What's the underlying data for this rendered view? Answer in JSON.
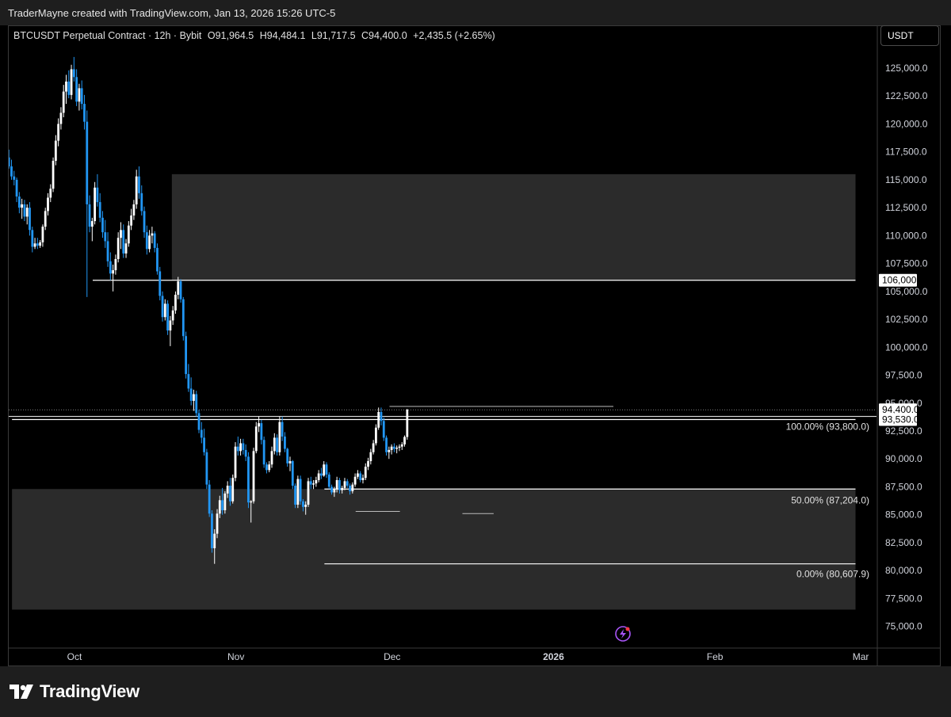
{
  "header": {
    "credit": "TraderMayne created with TradingView.com, Jan 13, 2026 15:26 UTC-5"
  },
  "legend": {
    "symbol": "BTCUSDT Perpetual Contract · 12h · Bybit",
    "open": "O91,964.5",
    "high": "H94,484.1",
    "low": "L91,717.5",
    "close": "C94,400.0",
    "change": "+2,435.5 (+2.65%)"
  },
  "unit_button": "USDT",
  "footer": {
    "brand": "TradingView",
    "logo_icon": "tradingview-logo-icon"
  },
  "colors": {
    "background": "#000000",
    "up": "#ffffff",
    "down": "#2196f3",
    "zone": "#2b2b2b",
    "axis_text": "#d1d4dc"
  },
  "chart_data": {
    "type": "candlestick",
    "ylim": [
      73500,
      128000
    ],
    "y_ticks": [
      {
        "value": 125000,
        "label": "125,000.0"
      },
      {
        "value": 122500,
        "label": "122,500.0"
      },
      {
        "value": 120000,
        "label": "120,000.0"
      },
      {
        "value": 117500,
        "label": "117,500.0"
      },
      {
        "value": 115000,
        "label": "115,000.0"
      },
      {
        "value": 112500,
        "label": "112,500.0"
      },
      {
        "value": 110000,
        "label": "110,000.0"
      },
      {
        "value": 107500,
        "label": "107,500.0"
      },
      {
        "value": 105000,
        "label": "105,000.0"
      },
      {
        "value": 102500,
        "label": "102,500.0"
      },
      {
        "value": 100000,
        "label": "100,000.0"
      },
      {
        "value": 97500,
        "label": "97,500.0"
      },
      {
        "value": 95000,
        "label": "95,000.0"
      },
      {
        "value": 92500,
        "label": "92,500.0"
      },
      {
        "value": 90000,
        "label": "90,000.0"
      },
      {
        "value": 87500,
        "label": "87,500.0"
      },
      {
        "value": 85000,
        "label": "85,000.0"
      },
      {
        "value": 82500,
        "label": "82,500.0"
      },
      {
        "value": 80000,
        "label": "80,000.0"
      },
      {
        "value": 77500,
        "label": "77,500.0"
      },
      {
        "value": 75000,
        "label": "75,000.0"
      }
    ],
    "x_ticks": [
      {
        "day": 0,
        "label": "Oct",
        "bold": false
      },
      {
        "day": 31,
        "label": "Nov",
        "bold": false
      },
      {
        "day": 61,
        "label": "Dec",
        "bold": false
      },
      {
        "day": 92,
        "label": "2026",
        "bold": true
      },
      {
        "day": 123,
        "label": "Feb",
        "bold": false
      },
      {
        "day": 151,
        "label": "Mar",
        "bold": false
      }
    ],
    "price_labels": [
      {
        "value": 106000,
        "label": "106,000.0"
      },
      {
        "value": 94400,
        "label": "94,400.0"
      },
      {
        "value": 93530,
        "label": "93,530.0"
      }
    ],
    "fib_levels": [
      {
        "value": 93800,
        "label": "100.00% (93,800.0)"
      },
      {
        "value": 87204,
        "label": "50.00% (87,204.0)"
      },
      {
        "value": 80607.9,
        "label": "0.00% (80,607.9)"
      }
    ],
    "zones": [
      {
        "x_start": 18.7,
        "x_end": 150,
        "y_low": 106000,
        "y_high": 115500
      },
      {
        "x_start": -12,
        "x_end": 150,
        "y_low": 76500,
        "y_high": 87300
      }
    ],
    "levels": [
      {
        "x_start": 3.5,
        "x_end": 150,
        "value": 106000
      },
      {
        "x_start": -12,
        "x_end": 150,
        "value": 93530
      },
      {
        "x_start": 48,
        "x_end": 150,
        "value": 87300
      },
      {
        "x_start": 48,
        "x_end": 150,
        "value": 80600
      }
    ],
    "current_price": 94400,
    "candles": [
      {
        "o": 117000,
        "h": 117700,
        "l": 116000,
        "c": 116200
      },
      {
        "o": 116200,
        "h": 116800,
        "l": 115000,
        "c": 115300
      },
      {
        "o": 115300,
        "h": 115800,
        "l": 114500,
        "c": 115000
      },
      {
        "o": 115000,
        "h": 115200,
        "l": 113000,
        "c": 113500
      },
      {
        "o": 113500,
        "h": 113900,
        "l": 112000,
        "c": 112500
      },
      {
        "o": 112500,
        "h": 113300,
        "l": 111500,
        "c": 112800
      },
      {
        "o": 112800,
        "h": 113200,
        "l": 111300,
        "c": 111700
      },
      {
        "o": 111700,
        "h": 112800,
        "l": 111000,
        "c": 112500
      },
      {
        "o": 112500,
        "h": 113000,
        "l": 110000,
        "c": 110500
      },
      {
        "o": 110500,
        "h": 110800,
        "l": 108500,
        "c": 109000
      },
      {
        "o": 109000,
        "h": 109800,
        "l": 108800,
        "c": 109300
      },
      {
        "o": 109300,
        "h": 109800,
        "l": 108800,
        "c": 109100
      },
      {
        "o": 109100,
        "h": 109600,
        "l": 108900,
        "c": 109400
      },
      {
        "o": 109400,
        "h": 111000,
        "l": 109000,
        "c": 110800
      },
      {
        "o": 110800,
        "h": 112500,
        "l": 110500,
        "c": 112200
      },
      {
        "o": 112200,
        "h": 113800,
        "l": 111800,
        "c": 113400
      },
      {
        "o": 113400,
        "h": 114600,
        "l": 113000,
        "c": 114200
      },
      {
        "o": 114200,
        "h": 117000,
        "l": 113900,
        "c": 116700
      },
      {
        "o": 116700,
        "h": 119000,
        "l": 116300,
        "c": 118500
      },
      {
        "o": 118500,
        "h": 120500,
        "l": 118000,
        "c": 120000
      },
      {
        "o": 120000,
        "h": 121500,
        "l": 119500,
        "c": 121000
      },
      {
        "o": 121000,
        "h": 123500,
        "l": 120600,
        "c": 122900
      },
      {
        "o": 122900,
        "h": 124400,
        "l": 121800,
        "c": 123800
      },
      {
        "o": 123800,
        "h": 124800,
        "l": 122300,
        "c": 122600
      },
      {
        "o": 122600,
        "h": 125300,
        "l": 122200,
        "c": 124900
      },
      {
        "o": 124900,
        "h": 126000,
        "l": 123800,
        "c": 124200
      },
      {
        "o": 124200,
        "h": 124900,
        "l": 121600,
        "c": 122000
      },
      {
        "o": 122000,
        "h": 123600,
        "l": 121200,
        "c": 123200
      },
      {
        "o": 123200,
        "h": 123900,
        "l": 121300,
        "c": 121800
      },
      {
        "o": 121800,
        "h": 122600,
        "l": 119500,
        "c": 120200
      },
      {
        "o": 120200,
        "h": 121200,
        "l": 104500,
        "c": 112800
      },
      {
        "o": 112800,
        "h": 113600,
        "l": 110300,
        "c": 110800
      },
      {
        "o": 110800,
        "h": 111600,
        "l": 109500,
        "c": 111300
      },
      {
        "o": 111300,
        "h": 114800,
        "l": 111000,
        "c": 114300
      },
      {
        "o": 114300,
        "h": 115500,
        "l": 112600,
        "c": 113000
      },
      {
        "o": 113000,
        "h": 113800,
        "l": 111200,
        "c": 111600
      },
      {
        "o": 111600,
        "h": 112200,
        "l": 109800,
        "c": 110300
      },
      {
        "o": 110300,
        "h": 111400,
        "l": 108900,
        "c": 109500
      },
      {
        "o": 109500,
        "h": 110300,
        "l": 107200,
        "c": 107700
      },
      {
        "o": 107700,
        "h": 108500,
        "l": 106000,
        "c": 106600
      },
      {
        "o": 106600,
        "h": 107400,
        "l": 105000,
        "c": 106900
      },
      {
        "o": 106900,
        "h": 108300,
        "l": 106500,
        "c": 107900
      },
      {
        "o": 107900,
        "h": 110300,
        "l": 107600,
        "c": 109800
      },
      {
        "o": 109800,
        "h": 111200,
        "l": 108800,
        "c": 110500
      },
      {
        "o": 110500,
        "h": 111000,
        "l": 108000,
        "c": 108400
      },
      {
        "o": 108400,
        "h": 109700,
        "l": 108000,
        "c": 109300
      },
      {
        "o": 109300,
        "h": 111300,
        "l": 109000,
        "c": 110900
      },
      {
        "o": 110900,
        "h": 112400,
        "l": 110500,
        "c": 111800
      },
      {
        "o": 111800,
        "h": 113200,
        "l": 111400,
        "c": 112800
      },
      {
        "o": 112800,
        "h": 115900,
        "l": 112400,
        "c": 115300
      },
      {
        "o": 115300,
        "h": 116200,
        "l": 113300,
        "c": 113800
      },
      {
        "o": 113800,
        "h": 114500,
        "l": 111800,
        "c": 112200
      },
      {
        "o": 112200,
        "h": 112600,
        "l": 109800,
        "c": 110300
      },
      {
        "o": 110300,
        "h": 110900,
        "l": 108300,
        "c": 108800
      },
      {
        "o": 108800,
        "h": 110500,
        "l": 108500,
        "c": 110000
      },
      {
        "o": 110000,
        "h": 110800,
        "l": 109300,
        "c": 110200
      },
      {
        "o": 110200,
        "h": 110400,
        "l": 108500,
        "c": 108900
      },
      {
        "o": 108900,
        "h": 109300,
        "l": 106500,
        "c": 106800
      },
      {
        "o": 106800,
        "h": 107200,
        "l": 104200,
        "c": 104600
      },
      {
        "o": 104600,
        "h": 105000,
        "l": 102300,
        "c": 102700
      },
      {
        "o": 102700,
        "h": 104300,
        "l": 102400,
        "c": 103900
      },
      {
        "o": 103900,
        "h": 104200,
        "l": 101100,
        "c": 101500
      },
      {
        "o": 101500,
        "h": 102800,
        "l": 100100,
        "c": 102400
      },
      {
        "o": 102400,
        "h": 103700,
        "l": 102000,
        "c": 103300
      },
      {
        "o": 103300,
        "h": 105000,
        "l": 103000,
        "c": 104700
      },
      {
        "o": 104700,
        "h": 106300,
        "l": 104300,
        "c": 105900
      },
      {
        "o": 105900,
        "h": 106100,
        "l": 104000,
        "c": 104300
      },
      {
        "o": 104300,
        "h": 104500,
        "l": 100600,
        "c": 101000
      },
      {
        "o": 101000,
        "h": 101400,
        "l": 97200,
        "c": 97600
      },
      {
        "o": 97600,
        "h": 98500,
        "l": 96000,
        "c": 96300
      },
      {
        "o": 96300,
        "h": 97300,
        "l": 94800,
        "c": 95200
      },
      {
        "o": 95200,
        "h": 96200,
        "l": 94300,
        "c": 95800
      },
      {
        "o": 95800,
        "h": 96100,
        "l": 93800,
        "c": 94100
      },
      {
        "o": 94100,
        "h": 94400,
        "l": 92300,
        "c": 92600
      },
      {
        "o": 92600,
        "h": 93300,
        "l": 91400,
        "c": 91900
      },
      {
        "o": 91900,
        "h": 92700,
        "l": 90300,
        "c": 90600
      },
      {
        "o": 90600,
        "h": 90900,
        "l": 87300,
        "c": 87700
      },
      {
        "o": 87700,
        "h": 88100,
        "l": 84800,
        "c": 85100
      },
      {
        "o": 85100,
        "h": 85400,
        "l": 81600,
        "c": 82000
      },
      {
        "o": 82000,
        "h": 83700,
        "l": 80600,
        "c": 83300
      },
      {
        "o": 83300,
        "h": 85500,
        "l": 82900,
        "c": 85100
      },
      {
        "o": 85100,
        "h": 86700,
        "l": 84700,
        "c": 86300
      },
      {
        "o": 86300,
        "h": 87400,
        "l": 85000,
        "c": 85400
      },
      {
        "o": 85400,
        "h": 87100,
        "l": 85100,
        "c": 86900
      },
      {
        "o": 86900,
        "h": 88000,
        "l": 86500,
        "c": 87600
      },
      {
        "o": 87600,
        "h": 88300,
        "l": 85800,
        "c": 86200
      },
      {
        "o": 86200,
        "h": 88600,
        "l": 86000,
        "c": 88300
      },
      {
        "o": 88300,
        "h": 91500,
        "l": 88000,
        "c": 91100
      },
      {
        "o": 91100,
        "h": 92000,
        "l": 90300,
        "c": 90700
      },
      {
        "o": 90700,
        "h": 91800,
        "l": 90300,
        "c": 91400
      },
      {
        "o": 91400,
        "h": 91800,
        "l": 90400,
        "c": 90800
      },
      {
        "o": 90800,
        "h": 91300,
        "l": 89800,
        "c": 90200
      },
      {
        "o": 90200,
        "h": 90600,
        "l": 85600,
        "c": 86100
      },
      {
        "o": 86100,
        "h": 86300,
        "l": 84300,
        "c": 86200
      },
      {
        "o": 86200,
        "h": 91000,
        "l": 86000,
        "c": 90700
      },
      {
        "o": 90700,
        "h": 93300,
        "l": 90500,
        "c": 92900
      },
      {
        "o": 92900,
        "h": 93800,
        "l": 92400,
        "c": 93200
      },
      {
        "o": 93200,
        "h": 93500,
        "l": 91300,
        "c": 91700
      },
      {
        "o": 91700,
        "h": 92000,
        "l": 89200,
        "c": 89500
      },
      {
        "o": 89500,
        "h": 89700,
        "l": 88700,
        "c": 89000
      },
      {
        "o": 89000,
        "h": 89800,
        "l": 88800,
        "c": 89500
      },
      {
        "o": 89500,
        "h": 91100,
        "l": 89200,
        "c": 90700
      },
      {
        "o": 90700,
        "h": 92300,
        "l": 90400,
        "c": 91900
      },
      {
        "o": 91900,
        "h": 92200,
        "l": 90300,
        "c": 90600
      },
      {
        "o": 90600,
        "h": 93800,
        "l": 90300,
        "c": 93300
      },
      {
        "o": 93300,
        "h": 93800,
        "l": 91600,
        "c": 92000
      },
      {
        "o": 92000,
        "h": 92400,
        "l": 90600,
        "c": 90900
      },
      {
        "o": 90900,
        "h": 91000,
        "l": 89300,
        "c": 89600
      },
      {
        "o": 89600,
        "h": 90200,
        "l": 88900,
        "c": 89800
      },
      {
        "o": 89800,
        "h": 89900,
        "l": 87300,
        "c": 87600
      },
      {
        "o": 87600,
        "h": 87800,
        "l": 85600,
        "c": 85900
      },
      {
        "o": 85900,
        "h": 88500,
        "l": 85600,
        "c": 88200
      },
      {
        "o": 88200,
        "h": 88500,
        "l": 85900,
        "c": 86200
      },
      {
        "o": 86200,
        "h": 86400,
        "l": 85300,
        "c": 85700
      },
      {
        "o": 85700,
        "h": 86200,
        "l": 85000,
        "c": 85900
      },
      {
        "o": 85900,
        "h": 88300,
        "l": 85700,
        "c": 88000
      },
      {
        "o": 88000,
        "h": 88400,
        "l": 87300,
        "c": 87700
      },
      {
        "o": 87700,
        "h": 88100,
        "l": 87300,
        "c": 87800
      },
      {
        "o": 87800,
        "h": 88400,
        "l": 87500,
        "c": 88100
      },
      {
        "o": 88100,
        "h": 89000,
        "l": 87900,
        "c": 88700
      },
      {
        "o": 88700,
        "h": 89200,
        "l": 88200,
        "c": 88500
      },
      {
        "o": 88500,
        "h": 89800,
        "l": 88400,
        "c": 89500
      },
      {
        "o": 89500,
        "h": 89700,
        "l": 88300,
        "c": 88600
      },
      {
        "o": 88600,
        "h": 88800,
        "l": 87300,
        "c": 87500
      },
      {
        "o": 87500,
        "h": 87700,
        "l": 86800,
        "c": 87000
      },
      {
        "o": 87000,
        "h": 87500,
        "l": 86600,
        "c": 87300
      },
      {
        "o": 87300,
        "h": 88400,
        "l": 87000,
        "c": 88100
      },
      {
        "o": 88100,
        "h": 88300,
        "l": 86900,
        "c": 87200
      },
      {
        "o": 87200,
        "h": 87600,
        "l": 86900,
        "c": 87400
      },
      {
        "o": 87400,
        "h": 88300,
        "l": 87200,
        "c": 88000
      },
      {
        "o": 88000,
        "h": 88200,
        "l": 87400,
        "c": 87600
      },
      {
        "o": 87600,
        "h": 87800,
        "l": 86800,
        "c": 87100
      },
      {
        "o": 87100,
        "h": 87900,
        "l": 86900,
        "c": 87700
      },
      {
        "o": 87700,
        "h": 88700,
        "l": 87500,
        "c": 88400
      },
      {
        "o": 88400,
        "h": 89000,
        "l": 88200,
        "c": 88700
      },
      {
        "o": 88700,
        "h": 88900,
        "l": 87900,
        "c": 88100
      },
      {
        "o": 88100,
        "h": 88600,
        "l": 87800,
        "c": 88300
      },
      {
        "o": 88300,
        "h": 89600,
        "l": 88100,
        "c": 89300
      },
      {
        "o": 89300,
        "h": 90100,
        "l": 89000,
        "c": 89800
      },
      {
        "o": 89800,
        "h": 90900,
        "l": 89500,
        "c": 90600
      },
      {
        "o": 90600,
        "h": 91700,
        "l": 90400,
        "c": 91400
      },
      {
        "o": 91400,
        "h": 93100,
        "l": 91200,
        "c": 92800
      },
      {
        "o": 92800,
        "h": 94600,
        "l": 92600,
        "c": 94200
      },
      {
        "o": 94200,
        "h": 94600,
        "l": 93000,
        "c": 93400
      },
      {
        "o": 93400,
        "h": 93700,
        "l": 91600,
        "c": 91900
      },
      {
        "o": 91900,
        "h": 92100,
        "l": 90300,
        "c": 90600
      },
      {
        "o": 90600,
        "h": 91100,
        "l": 90000,
        "c": 90800
      },
      {
        "o": 90800,
        "h": 91300,
        "l": 90400,
        "c": 91100
      },
      {
        "o": 91100,
        "h": 91400,
        "l": 90600,
        "c": 90900
      },
      {
        "o": 90900,
        "h": 91200,
        "l": 90500,
        "c": 91000
      },
      {
        "o": 91000,
        "h": 91300,
        "l": 90700,
        "c": 91100
      },
      {
        "o": 91100,
        "h": 91500,
        "l": 90800,
        "c": 91300
      },
      {
        "o": 91300,
        "h": 92100,
        "l": 91100,
        "c": 91964.5
      },
      {
        "o": 91964.5,
        "h": 94484.1,
        "l": 91717.5,
        "c": 94400
      }
    ]
  }
}
